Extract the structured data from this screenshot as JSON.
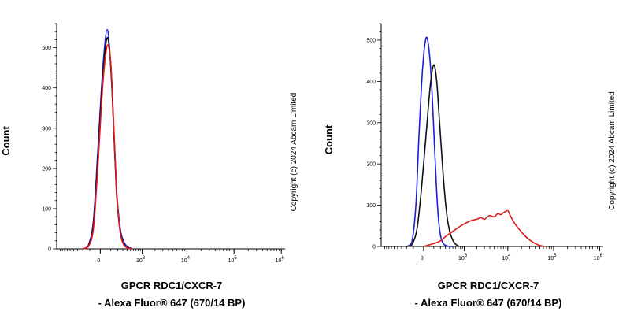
{
  "chart_data": [
    {
      "type": "line",
      "panel": "left",
      "ylabel": "Count",
      "xlabel_line1": "GPCR RDC1/CXCR-7",
      "xlabel_line2": "- Alexa Fluor® 647 (670/14 BP)",
      "copyright": "Copyright (c) 2024 Abcam Limited",
      "x_scale": "biexponential",
      "ylim": [
        0,
        560
      ],
      "y_ticks": [
        {
          "value": 0,
          "label": "0"
        },
        {
          "value": 100,
          "label": "100"
        },
        {
          "value": 200,
          "label": "200"
        },
        {
          "value": 300,
          "label": "300"
        },
        {
          "value": 400,
          "label": "400"
        },
        {
          "value": 500,
          "label": "500"
        }
      ],
      "x_ticks": [
        {
          "value": 0,
          "label": "0"
        },
        {
          "value": 1000,
          "label": "10",
          "exp": "3"
        },
        {
          "value": 10000,
          "label": "10",
          "exp": "4"
        },
        {
          "value": 100000,
          "label": "10",
          "exp": "5"
        },
        {
          "value": 1000000,
          "label": "10",
          "exp": "6"
        }
      ],
      "series": [
        {
          "color": "#1f1fd0",
          "x": [
            -200,
            -120,
            -60,
            -20,
            20,
            60,
            100,
            140,
            180,
            220,
            260,
            320,
            380,
            450,
            550
          ],
          "y": [
            0,
            8,
            70,
            240,
            450,
            545,
            450,
            290,
            150,
            80,
            40,
            18,
            8,
            3,
            0
          ]
        },
        {
          "color": "#111111",
          "x": [
            -200,
            -120,
            -60,
            -20,
            20,
            60,
            100,
            140,
            180,
            220,
            260,
            320,
            380,
            450,
            550
          ],
          "y": [
            0,
            6,
            60,
            220,
            430,
            525,
            455,
            290,
            140,
            70,
            32,
            12,
            5,
            2,
            0
          ]
        },
        {
          "color": "#e01818",
          "x": [
            -200,
            -120,
            -60,
            -20,
            20,
            60,
            100,
            140,
            180,
            220,
            260,
            320,
            380,
            450,
            550
          ],
          "y": [
            0,
            5,
            50,
            200,
            410,
            505,
            460,
            300,
            150,
            72,
            30,
            10,
            4,
            1,
            0
          ]
        }
      ]
    },
    {
      "type": "line",
      "panel": "right",
      "ylabel": "Count",
      "xlabel_line1": "GPCR RDC1/CXCR-7",
      "xlabel_line2": "- Alexa Fluor® 647 (670/14 BP)",
      "copyright": "Copyright (c) 2024 Abcam Limited",
      "x_scale": "biexponential",
      "ylim": [
        0,
        540
      ],
      "y_ticks": [
        {
          "value": 0,
          "label": "0"
        },
        {
          "value": 100,
          "label": "100"
        },
        {
          "value": 200,
          "label": "200"
        },
        {
          "value": 300,
          "label": "300"
        },
        {
          "value": 400,
          "label": "400"
        },
        {
          "value": 500,
          "label": "500"
        }
      ],
      "x_ticks": [
        {
          "value": 0,
          "label": "0"
        },
        {
          "value": 1000,
          "label": "10",
          "exp": "3"
        },
        {
          "value": 10000,
          "label": "10",
          "exp": "4"
        },
        {
          "value": 100000,
          "label": "10",
          "exp": "5"
        },
        {
          "value": 1000000,
          "label": "10",
          "exp": "6"
        }
      ],
      "series": [
        {
          "color": "#1f1fd0",
          "x": [
            -200,
            -120,
            -70,
            -40,
            -10,
            20,
            50,
            80,
            110,
            140,
            170,
            210,
            260,
            320,
            400,
            500
          ],
          "y": [
            0,
            10,
            100,
            260,
            420,
            505,
            470,
            370,
            240,
            130,
            60,
            20,
            6,
            2,
            0,
            0
          ]
        },
        {
          "color": "#111111",
          "x": [
            -200,
            -120,
            -60,
            -20,
            20,
            60,
            100,
            140,
            180,
            230,
            280,
            340,
            400,
            480,
            560,
            650,
            750
          ],
          "y": [
            0,
            4,
            40,
            130,
            270,
            390,
            440,
            400,
            310,
            210,
            130,
            70,
            38,
            18,
            8,
            3,
            0
          ]
        },
        {
          "color": "#e01818",
          "x": [
            0,
            120,
            200,
            300,
            450,
            700,
            1000,
            1500,
            2000,
            2500,
            3000,
            3500,
            4000,
            5000,
            6000,
            7000,
            8000,
            9000,
            10000,
            11000,
            12500,
            15000,
            20000,
            27000,
            36000,
            48000,
            65000
          ],
          "y": [
            0,
            8,
            14,
            24,
            34,
            46,
            55,
            63,
            66,
            70,
            66,
            72,
            75,
            72,
            80,
            77,
            82,
            85,
            87,
            78,
            66,
            52,
            35,
            20,
            10,
            3,
            0
          ]
        }
      ]
    }
  ]
}
